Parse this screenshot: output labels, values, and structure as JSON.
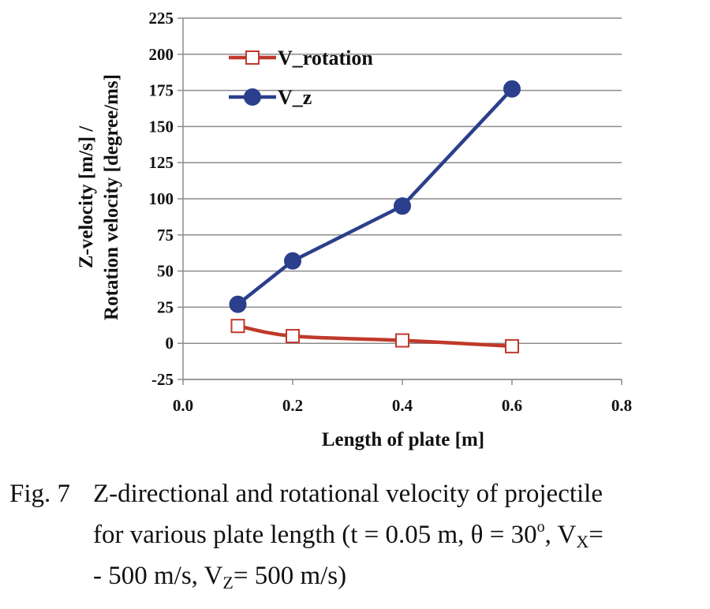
{
  "chart_data": {
    "type": "line",
    "xlabel": "Length of plate [m]",
    "ylabel_line1": "Z-velocity [m/s] /",
    "ylabel_line2": "Rotation velocity [degree/ms]",
    "xlim": [
      0.0,
      0.8
    ],
    "ylim": [
      -25,
      225
    ],
    "x_ticks": [
      0.0,
      0.2,
      0.4,
      0.6,
      0.8
    ],
    "x_tick_labels": [
      "0.0",
      "0.2",
      "0.4",
      "0.6",
      "0.8"
    ],
    "y_ticks": [
      -25,
      0,
      25,
      50,
      75,
      100,
      125,
      150,
      175,
      200,
      225
    ],
    "y_tick_labels": [
      "-25",
      "0",
      "25",
      "50",
      "75",
      "100",
      "125",
      "150",
      "175",
      "200",
      "225"
    ],
    "grid": "horizontal",
    "legend_position": "top-left",
    "series": [
      {
        "name": "V_rotation",
        "x": [
          0.1,
          0.2,
          0.4,
          0.6
        ],
        "values": [
          12,
          5,
          2,
          -2
        ],
        "color": "#c0392b",
        "marker": "open-square"
      },
      {
        "name": "V_z",
        "x": [
          0.1,
          0.2,
          0.4,
          0.6
        ],
        "values": [
          27,
          57,
          95,
          176
        ],
        "color": "#2b3f8c",
        "marker": "filled-circle"
      }
    ]
  },
  "caption": {
    "number": "Fig. 7",
    "line1": "Z-directional and rotational velocity of projectile",
    "line2_pre": "for various plate length (t = 0.05 m, θ = 30",
    "line2_sup": "o",
    "line2_mid": ", V",
    "line2_sub": "X",
    "line2_post": "=",
    "line3_pre": "- 500 m/s, V",
    "line3_sub": "Z",
    "line3_post": "= 500 m/s)"
  }
}
